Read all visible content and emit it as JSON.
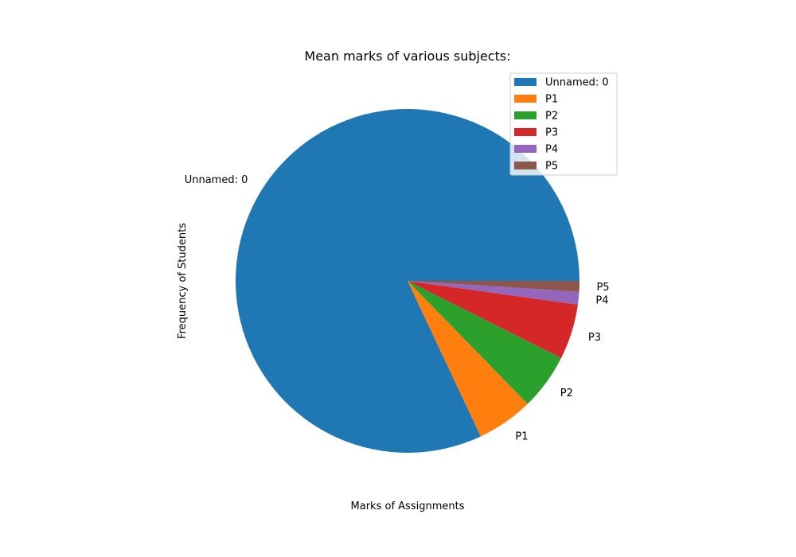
{
  "chart_data": {
    "type": "pie",
    "title": "Mean marks of various subjects:",
    "xlabel": "Marks of Assignments",
    "ylabel": "Frequency of Students",
    "legend_position": "top-right",
    "start_angle_deg": 0,
    "direction": "counterclockwise",
    "slices": [
      {
        "label": "Unnamed: 0",
        "value": 82.0,
        "color": "#1f77b4"
      },
      {
        "label": "P1",
        "value": 5.3,
        "color": "#ff7f0e"
      },
      {
        "label": "P2",
        "value": 5.3,
        "color": "#2ca02c"
      },
      {
        "label": "P3",
        "value": 5.2,
        "color": "#d62728"
      },
      {
        "label": "P4",
        "value": 1.2,
        "color": "#9467bd"
      },
      {
        "label": "P5",
        "value": 1.0,
        "color": "#8c564b"
      }
    ]
  }
}
